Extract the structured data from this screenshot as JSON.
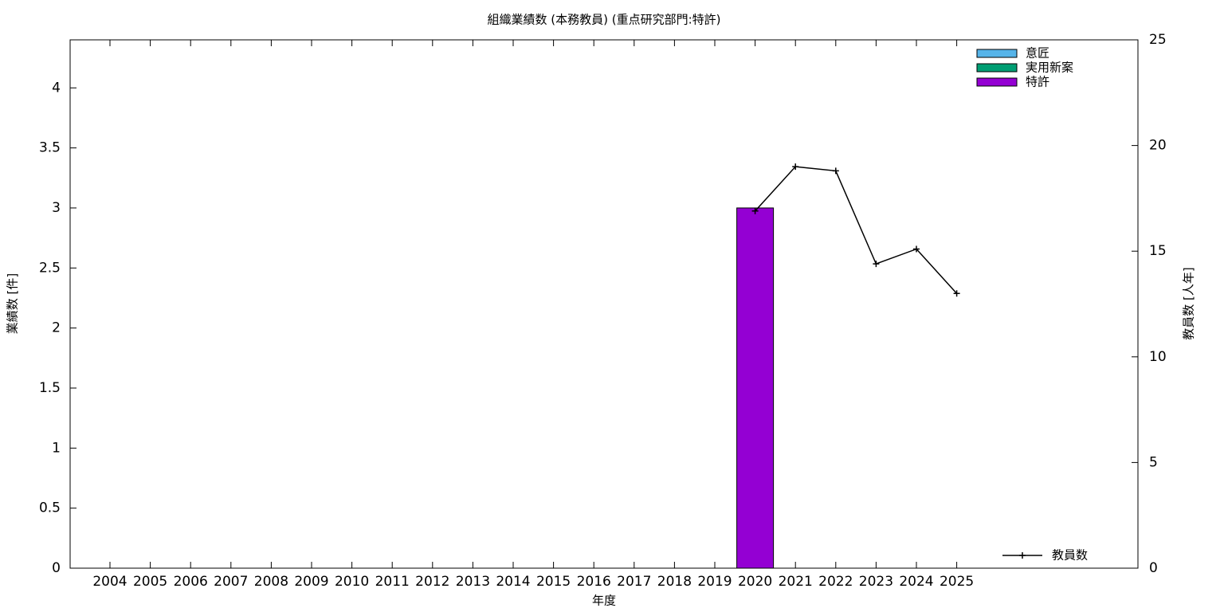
{
  "chart_data": {
    "type": "bar",
    "stacked": true,
    "title": "組織業績数 (本務教員) (重点研究部門:特許)",
    "x_label": "年度",
    "y_label": "業績数 [件]",
    "y2_label": "教員数 [人年]",
    "categories": [
      "2004",
      "2005",
      "2006",
      "2007",
      "2008",
      "2009",
      "2010",
      "2011",
      "2012",
      "2013",
      "2014",
      "2015",
      "2016",
      "2017",
      "2018",
      "2019",
      "2020",
      "2021",
      "2022",
      "2023",
      "2024",
      "2025"
    ],
    "series": [
      {
        "name": "意匠",
        "color": "#56b4e9",
        "values": [
          0,
          0,
          0,
          0,
          0,
          0,
          0,
          0,
          0,
          0,
          0,
          0,
          0,
          0,
          0,
          0,
          0,
          0,
          0,
          0,
          0,
          0
        ]
      },
      {
        "name": "実用新案",
        "color": "#009e73",
        "values": [
          0,
          0,
          0,
          0,
          0,
          0,
          0,
          0,
          0,
          0,
          0,
          0,
          0,
          0,
          0,
          0,
          0,
          0,
          0,
          0,
          0,
          0
        ]
      },
      {
        "name": "特許",
        "color": "#9400d3",
        "values": [
          0,
          0,
          0,
          0,
          0,
          0,
          0,
          0,
          0,
          0,
          0,
          0,
          0,
          0,
          0,
          0,
          3,
          0,
          0,
          0,
          0,
          0
        ]
      },
      {
        "name": "教員数",
        "color": "#000000",
        "type": "line",
        "axis": "y2",
        "values": [
          null,
          null,
          null,
          null,
          null,
          null,
          null,
          null,
          null,
          null,
          null,
          null,
          null,
          null,
          null,
          null,
          16.9,
          19.0,
          18.8,
          14.4,
          15.1,
          13.0
        ]
      }
    ],
    "ylim": [
      0,
      4.4
    ],
    "yticks": [
      0,
      0.5,
      1,
      1.5,
      2,
      2.5,
      3,
      3.5,
      4
    ],
    "y2lim": [
      0,
      25
    ],
    "y2ticks": [
      0,
      5,
      10,
      15,
      20,
      25
    ],
    "legend": "top-right",
    "line_legend": "bottom-right",
    "grid": false
  }
}
